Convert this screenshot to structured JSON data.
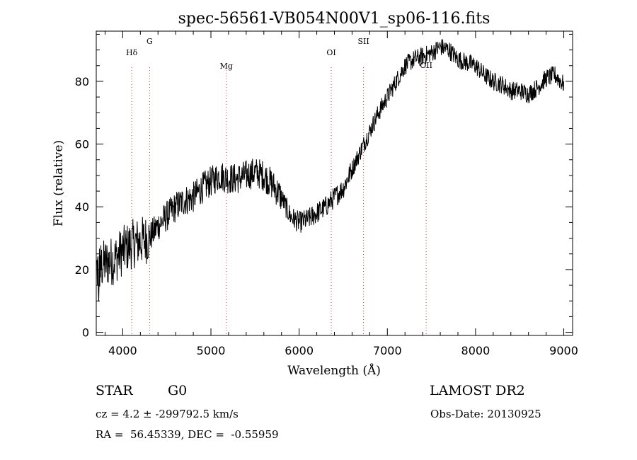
{
  "chart_data": {
    "type": "line",
    "title": "spec-56561-VB054N00V1_sp06-116.fits",
    "xlabel": "Wavelength (Å)",
    "ylabel": "Flux (relative)",
    "xlim": [
      3700,
      9100
    ],
    "ylim": [
      -1,
      96
    ],
    "x_ticks": [
      4000,
      5000,
      6000,
      7000,
      8000,
      9000
    ],
    "y_ticks": [
      0,
      20,
      40,
      60,
      80
    ],
    "grid": false,
    "line_color": "#000000",
    "marker_color": "#cc3333",
    "spectral_lines": [
      {
        "label": "Hδ",
        "wavelength": 4102
      },
      {
        "label": "G",
        "wavelength": 4305
      },
      {
        "label": "Mg",
        "wavelength": 5175
      },
      {
        "label": "OI",
        "wavelength": 6364
      },
      {
        "label": "SII",
        "wavelength": 6730
      },
      {
        "label": "OII",
        "wavelength": 7440
      }
    ],
    "continuum": [
      [
        3700,
        20
      ],
      [
        3800,
        22
      ],
      [
        3900,
        23
      ],
      [
        4000,
        26
      ],
      [
        4100,
        28
      ],
      [
        4200,
        29
      ],
      [
        4300,
        30
      ],
      [
        4400,
        34
      ],
      [
        4500,
        37
      ],
      [
        4600,
        40
      ],
      [
        4700,
        42
      ],
      [
        4800,
        43
      ],
      [
        4900,
        46
      ],
      [
        5000,
        48
      ],
      [
        5100,
        50
      ],
      [
        5200,
        49
      ],
      [
        5300,
        49
      ],
      [
        5400,
        50
      ],
      [
        5500,
        51
      ],
      [
        5600,
        50
      ],
      [
        5700,
        47
      ],
      [
        5800,
        43
      ],
      [
        5900,
        37
      ],
      [
        6000,
        35
      ],
      [
        6100,
        36
      ],
      [
        6200,
        38
      ],
      [
        6300,
        40
      ],
      [
        6400,
        43
      ],
      [
        6500,
        46
      ],
      [
        6600,
        52
      ],
      [
        6700,
        58
      ],
      [
        6800,
        64
      ],
      [
        6900,
        70
      ],
      [
        7000,
        75
      ],
      [
        7100,
        80
      ],
      [
        7200,
        85
      ],
      [
        7300,
        87
      ],
      [
        7400,
        88
      ],
      [
        7500,
        89
      ],
      [
        7600,
        91
      ],
      [
        7700,
        90
      ],
      [
        7800,
        87
      ],
      [
        7900,
        86
      ],
      [
        8000,
        85
      ],
      [
        8100,
        82
      ],
      [
        8200,
        80
      ],
      [
        8300,
        79
      ],
      [
        8400,
        77
      ],
      [
        8500,
        77
      ],
      [
        8600,
        76
      ],
      [
        8700,
        78
      ],
      [
        8800,
        81
      ],
      [
        8900,
        82
      ],
      [
        9000,
        79
      ]
    ]
  },
  "info": {
    "object_type": "STAR",
    "subclass": "G0",
    "survey": "LAMOST DR2",
    "redshift": "cz = 4.2 ± -299792.5 km/s",
    "obs_date": "Obs-Date: 20130925",
    "coords": "RA =  56.45339, DEC =  -0.55959"
  }
}
